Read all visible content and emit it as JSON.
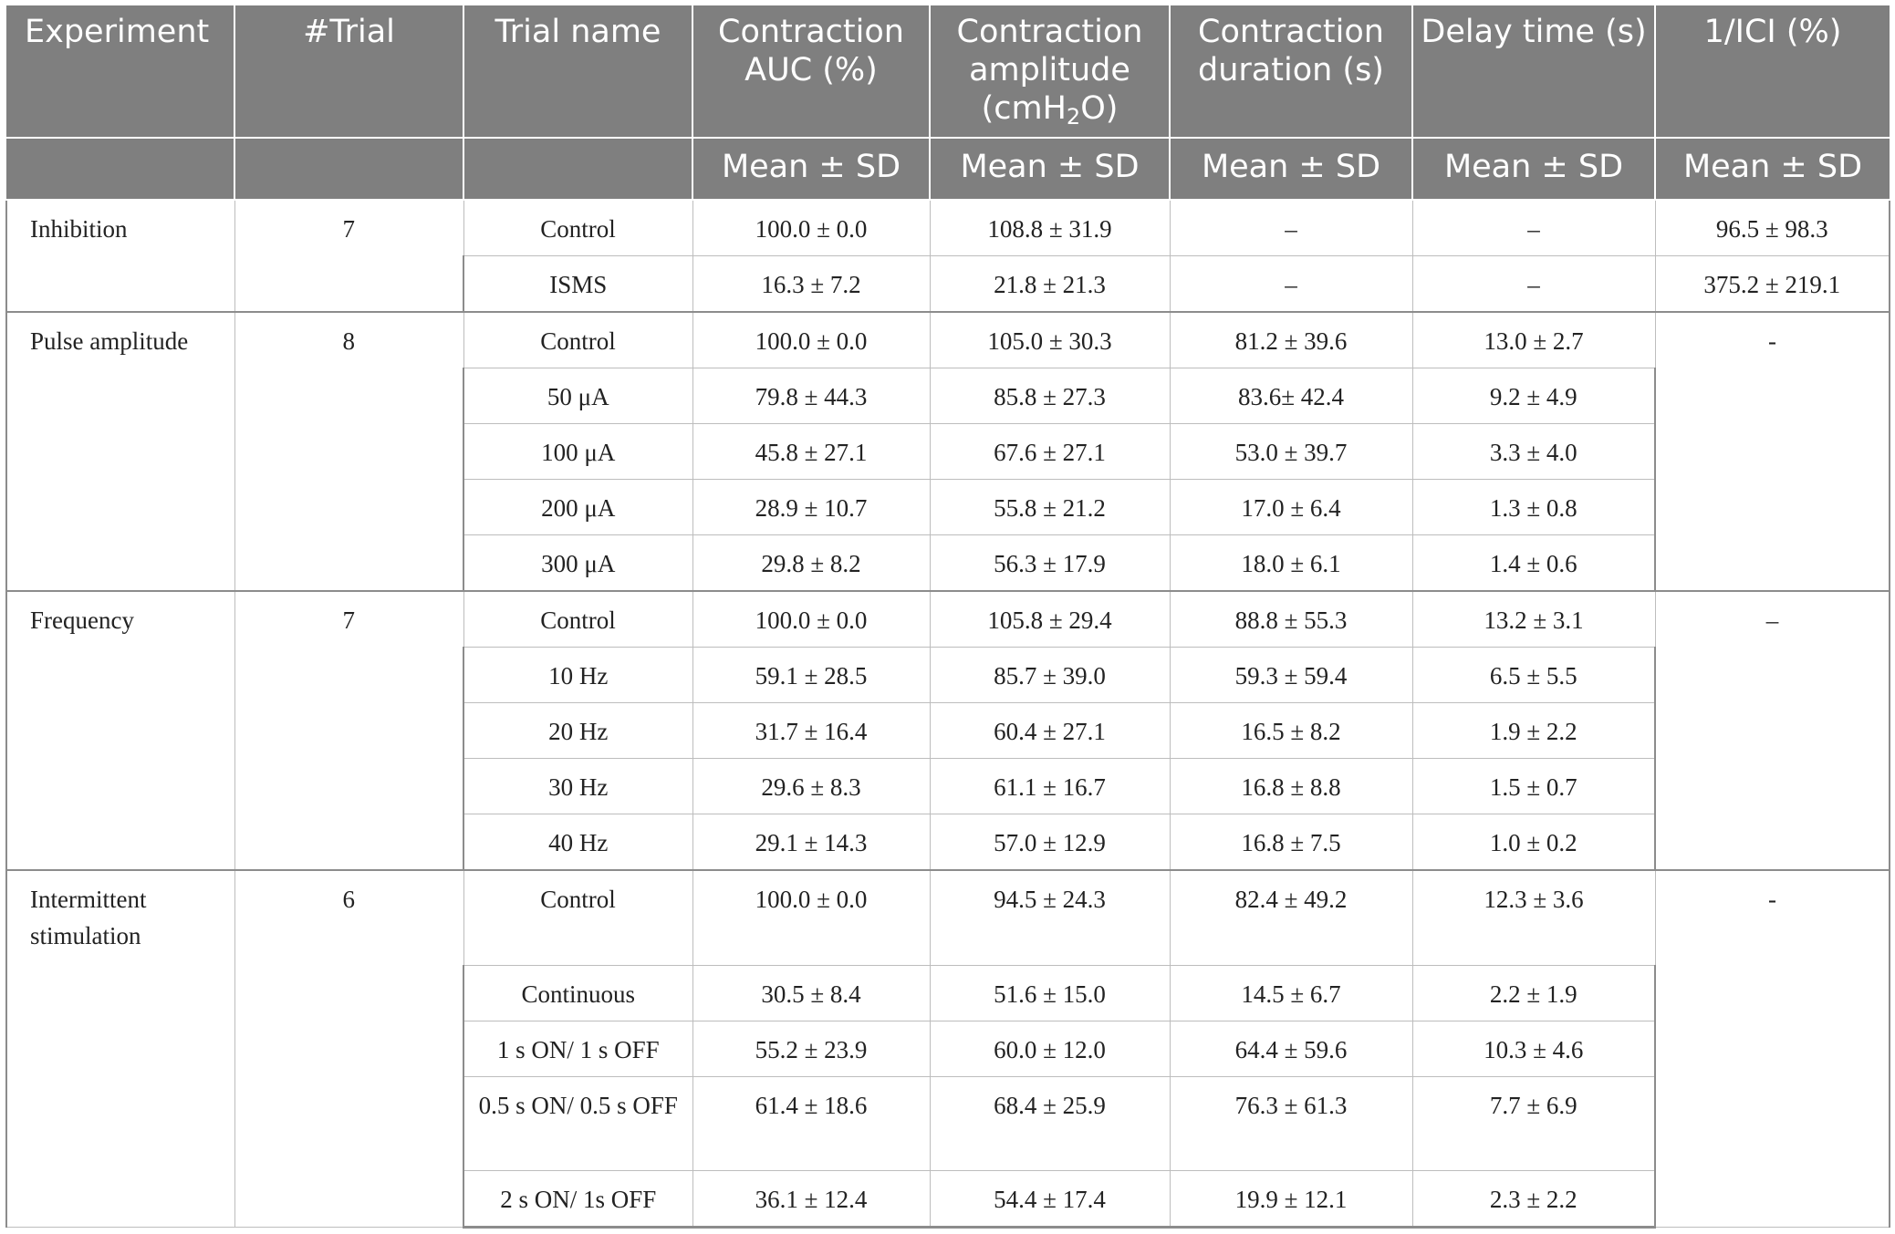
{
  "header": {
    "experiment": "Experiment",
    "trial_no": "#Trial",
    "trial_name": "Trial name",
    "auc": "Contraction AUC (%)",
    "amplitude_pre": "Contraction amplitude (cmH",
    "amplitude_sub": "2",
    "amplitude_post": "O)",
    "duration": "Contraction duration (s)",
    "delay": "Delay time (s)",
    "ici": "1/ICI (%)",
    "mean_sd": "Mean ± SD"
  },
  "groups": [
    {
      "experiment": "Inhibition",
      "trials": "7",
      "ici_value": null,
      "rows": [
        {
          "name": "Control",
          "auc": "100.0 ± 0.0",
          "amp": "108.8 ± 31.9",
          "dur": "–",
          "delay": "–",
          "ici": "96.5 ± 98.3"
        },
        {
          "name": "ISMS",
          "auc": "16.3 ± 7.2",
          "amp": "21.8 ± 21.3",
          "dur": "–",
          "delay": "–",
          "ici": "375.2 ± 219.1"
        }
      ]
    },
    {
      "experiment": "Pulse amplitude",
      "trials": "8",
      "ici_value": "-",
      "rows": [
        {
          "name": "Control",
          "auc": "100.0 ± 0.0",
          "amp": "105.0 ± 30.3",
          "dur": "81.2 ± 39.6",
          "delay": "13.0 ± 2.7"
        },
        {
          "name": "50 μA",
          "auc": "79.8 ± 44.3",
          "amp": "85.8 ± 27.3",
          "dur": "83.6± 42.4",
          "delay": "9.2 ± 4.9"
        },
        {
          "name": "100 μA",
          "auc": "45.8 ± 27.1",
          "amp": "67.6 ± 27.1",
          "dur": "53.0 ± 39.7",
          "delay": "3.3 ± 4.0"
        },
        {
          "name": "200 μA",
          "auc": "28.9 ± 10.7",
          "amp": "55.8 ± 21.2",
          "dur": "17.0 ± 6.4",
          "delay": "1.3 ± 0.8"
        },
        {
          "name": "300 μA",
          "auc": "29.8 ± 8.2",
          "amp": "56.3 ± 17.9",
          "dur": "18.0 ± 6.1",
          "delay": "1.4 ± 0.6"
        }
      ]
    },
    {
      "experiment": "Frequency",
      "trials": "7",
      "ici_value": "–",
      "rows": [
        {
          "name": "Control",
          "auc": "100.0 ± 0.0",
          "amp": "105.8 ± 29.4",
          "dur": "88.8 ± 55.3",
          "delay": "13.2 ± 3.1"
        },
        {
          "name": "10 Hz",
          "auc": "59.1 ± 28.5",
          "amp": "85.7 ± 39.0",
          "dur": "59.3 ± 59.4",
          "delay": "6.5 ± 5.5"
        },
        {
          "name": "20 Hz",
          "auc": "31.7 ± 16.4",
          "amp": "60.4 ± 27.1",
          "dur": "16.5 ± 8.2",
          "delay": "1.9 ± 2.2"
        },
        {
          "name": "30 Hz",
          "auc": "29.6 ± 8.3",
          "amp": "61.1 ± 16.7",
          "dur": "16.8 ± 8.8",
          "delay": "1.5 ± 0.7"
        },
        {
          "name": "40 Hz",
          "auc": "29.1 ± 14.3",
          "amp": "57.0 ± 12.9",
          "dur": "16.8 ± 7.5",
          "delay": "1.0 ± 0.2"
        }
      ]
    },
    {
      "experiment": "Intermittent stimulation",
      "trials": "6",
      "ici_value": "-",
      "rows": [
        {
          "name": "Control",
          "auc": "100.0 ± 0.0",
          "amp": "94.5 ± 24.3",
          "dur": "82.4 ± 49.2",
          "delay": "12.3 ± 3.6"
        },
        {
          "name": "Continuous",
          "auc": "30.5 ± 8.4",
          "amp": "51.6 ± 15.0",
          "dur": "14.5 ± 6.7",
          "delay": "2.2 ± 1.9"
        },
        {
          "name": "1 s ON/ 1 s OFF",
          "auc": "55.2 ± 23.9",
          "amp": "60.0 ± 12.0",
          "dur": "64.4 ± 59.6",
          "delay": "10.3 ± 4.6"
        },
        {
          "name": "0.5 s ON/ 0.5 s OFF",
          "auc": "61.4 ± 18.6",
          "amp": "68.4 ± 25.9",
          "dur": "76.3 ± 61.3",
          "delay": "7.7 ± 6.9"
        },
        {
          "name": "2 s ON/ 1s OFF",
          "auc": "36.1 ± 12.4",
          "amp": "54.4 ± 17.4",
          "dur": "19.9 ± 12.1",
          "delay": "2.3 ± 2.2"
        }
      ]
    }
  ]
}
